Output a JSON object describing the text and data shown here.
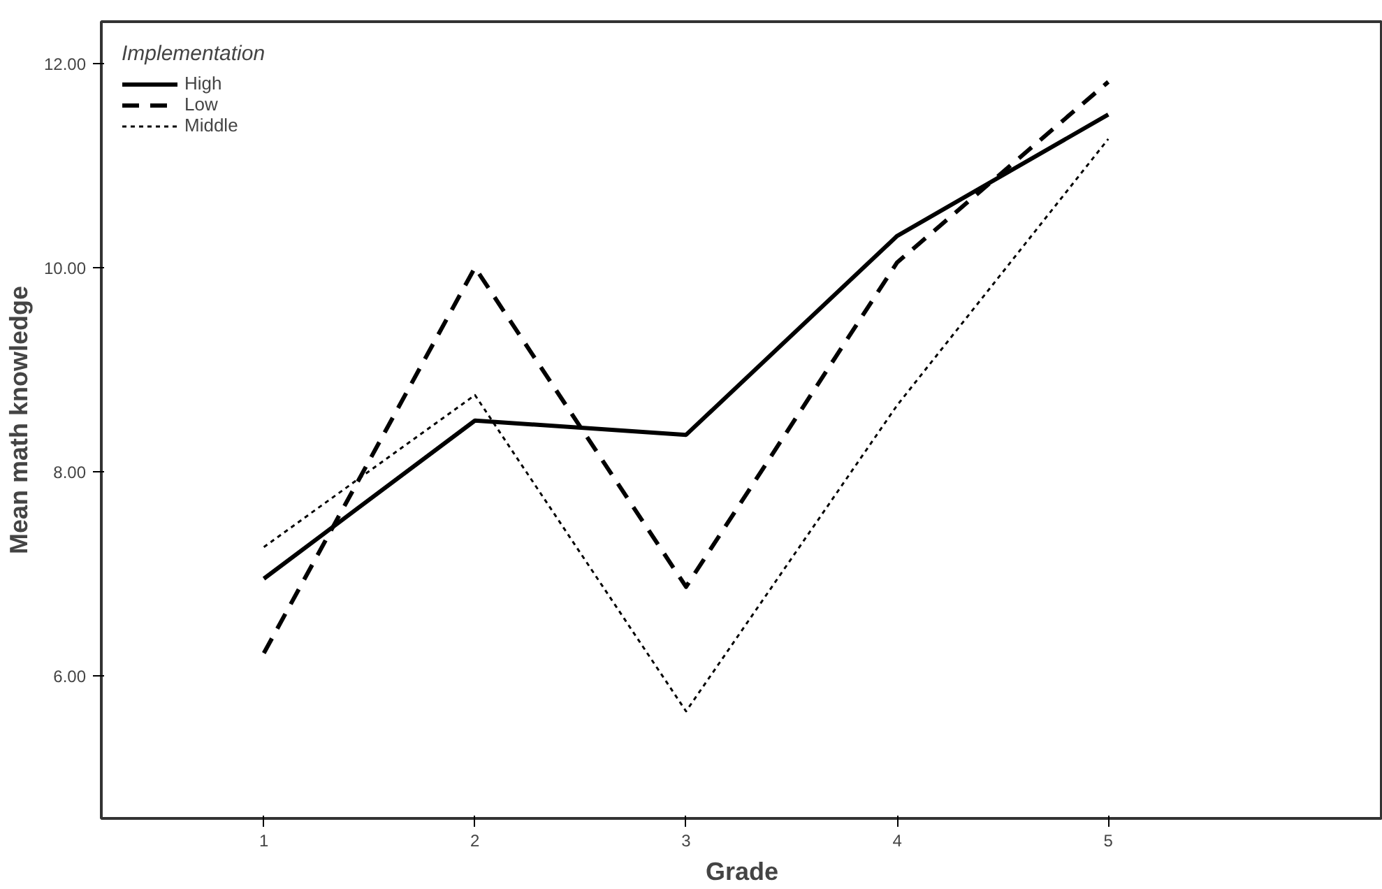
{
  "chart_data": {
    "type": "line",
    "xlabel": "Grade",
    "ylabel": "Mean math knowledge",
    "legend_title": "Implementation",
    "legend": "top left",
    "grid": false,
    "x": [
      1,
      2,
      3,
      4,
      5
    ],
    "xlim": [
      0.23,
      6.3
    ],
    "xticks": [
      1,
      2,
      3,
      4,
      5
    ],
    "ylim": [
      4.6,
      12.41
    ],
    "yticks": [
      {
        "value": 6,
        "label": "6.00"
      },
      {
        "value": 8,
        "label": "8.00"
      },
      {
        "value": 10,
        "label": "10.00"
      },
      {
        "value": 12,
        "label": "12.00"
      }
    ],
    "series": [
      {
        "name": "High",
        "color": "#000000",
        "line_style": "solid",
        "values": [
          6.95,
          8.5,
          8.36,
          10.31,
          11.5
        ]
      },
      {
        "name": "Low",
        "color": "#000000",
        "line_style": "dashed",
        "values": [
          6.22,
          10.0,
          6.87,
          10.05,
          11.82
        ]
      },
      {
        "name": "Middle",
        "color": "#000000",
        "line_style": "dotted",
        "values": [
          7.26,
          8.75,
          5.65,
          8.65,
          11.26
        ]
      }
    ]
  }
}
